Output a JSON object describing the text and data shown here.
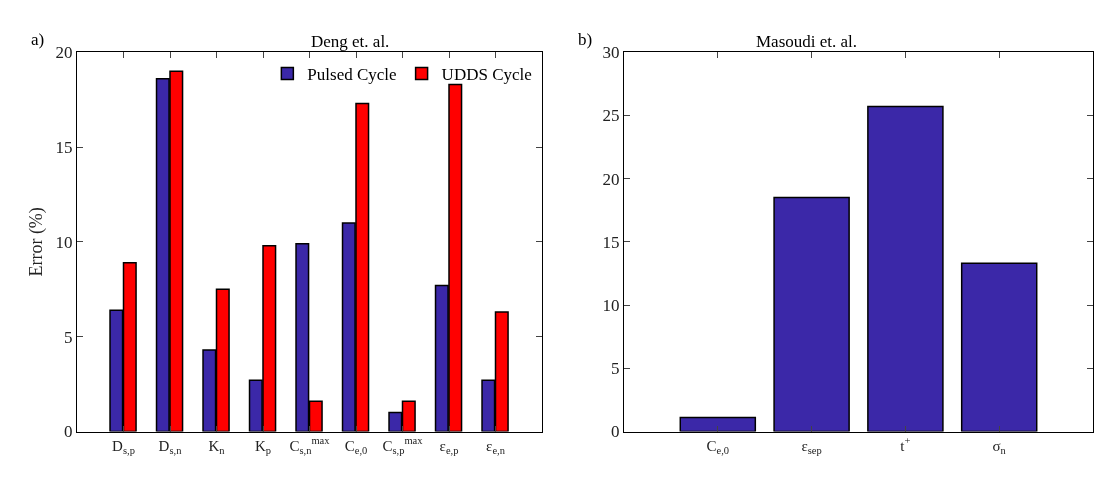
{
  "chart_data": [
    {
      "type": "bar",
      "title": "Deng et. al.",
      "ylabel": "Error (%)",
      "annotations": [
        "a)"
      ],
      "categories": [
        "D$_{s,p}$",
        "D$_{s,n}$",
        "K$_{n}$",
        "K$_{p}$",
        "C$_{s,n}$$^{max}$",
        "C$_{e,0}$",
        "C$_{s,p}$$^{max}$",
        "ε$_{e,p}$",
        "ε$_{e,n}$"
      ],
      "series": [
        {
          "name": "Pulsed Cycle",
          "color": "#3b28a8",
          "values": [
            6.4,
            18.6,
            4.3,
            2.7,
            9.9,
            11.0,
            1.0,
            7.7,
            2.7
          ]
        },
        {
          "name": "UDDS Cycle",
          "color": "#ff0000",
          "values": [
            8.9,
            19.0,
            7.5,
            9.8,
            1.6,
            17.3,
            1.6,
            18.3,
            6.3
          ]
        }
      ],
      "ylim": [
        0,
        20
      ],
      "yticks": [
        0,
        5,
        10,
        15,
        20
      ],
      "legend": "top right"
    },
    {
      "type": "bar",
      "title": "Masoudi et. al.",
      "annotations": [
        "b)"
      ],
      "categories": [
        "C$_{e,0}$",
        "ε$_{sep}$",
        "t$^{+}$",
        "σ$_{n}$"
      ],
      "series": [
        {
          "color": "#3b28a8",
          "values": [
            1.1,
            18.5,
            25.7,
            13.3
          ]
        }
      ],
      "ylim": [
        0,
        30
      ],
      "yticks": [
        0,
        5,
        10,
        15,
        20,
        25,
        30
      ],
      "legend": false
    }
  ]
}
